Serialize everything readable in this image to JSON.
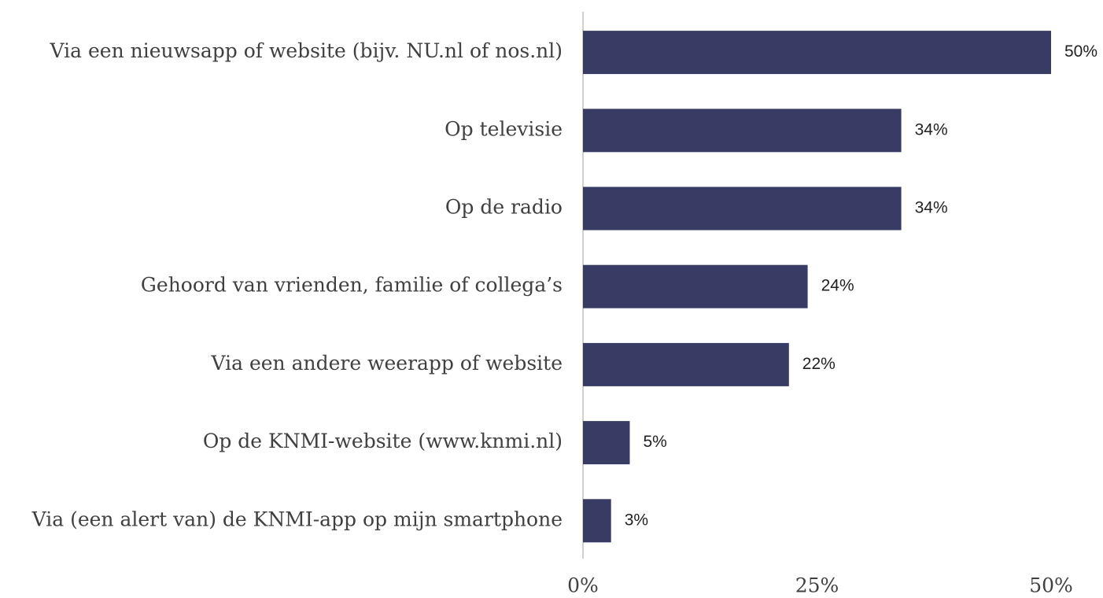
{
  "chart_data": {
    "type": "hbar",
    "categories": [
      "Via een nieuwsapp of website (bijv. NU.nl of nos.nl)",
      "Op televisie",
      "Op de radio",
      "Gehoord van vrienden, familie of collega’s",
      "Via een andere weerapp of website",
      "Op de KNMI-website (www.knmi.nl)",
      "Via (een alert van) de KNMI-app op mijn smartphone"
    ],
    "values": [
      50,
      34,
      34,
      24,
      22,
      5,
      3
    ],
    "value_labels": [
      "50%",
      "34%",
      "34%",
      "24%",
      "22%",
      "5%",
      "3%"
    ],
    "color": "#383c65",
    "xlim": [
      0,
      50
    ],
    "xticks": [
      {
        "value": 0,
        "label": "0%"
      },
      {
        "value": 25,
        "label": "25%"
      },
      {
        "value": 50,
        "label": "50%"
      }
    ]
  }
}
